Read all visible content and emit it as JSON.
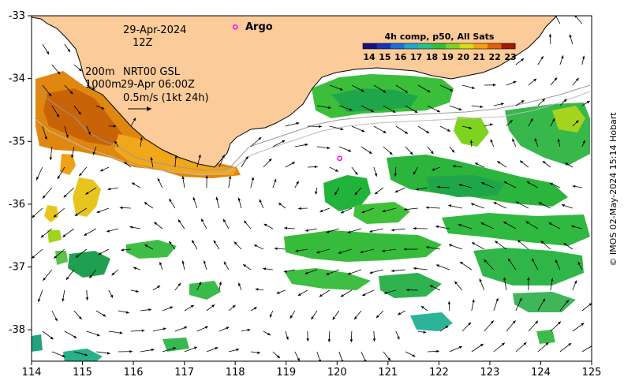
{
  "map": {
    "colors": {
      "land": "#fccb9a",
      "ocean_nodata": "#ffffff",
      "argo": "#ee00ee",
      "frame": "#000000"
    },
    "extent": {
      "lon": [
        114,
        125
      ],
      "lat": [
        -38.5,
        -33
      ]
    },
    "x_ticks": [
      "114",
      "115",
      "116",
      "117",
      "118",
      "119",
      "120",
      "121",
      "122",
      "123",
      "124",
      "125"
    ],
    "y_ticks": [
      "-33",
      "-34",
      "-35",
      "-36",
      "-37",
      "-38"
    ],
    "annotations": {
      "date": "29-Apr-2024",
      "hour": "12Z",
      "contour_200": "200m",
      "contour_1000": "1000m",
      "current_source": "NRT00 GSL",
      "current_time": "29-Apr 06:00Z",
      "scale_arrow": "0.5m/s (1kt 24h)",
      "argo_label": "Argo"
    },
    "argo_floats": [
      {
        "lon": 118.0,
        "lat": -33.18
      },
      {
        "lon": 120.05,
        "lat": -35.27
      }
    ],
    "colorbar": {
      "title": "4h comp, p50, All Sats",
      "labels": [
        "14",
        "15",
        "16",
        "17",
        "18",
        "19",
        "20",
        "21",
        "22",
        "23"
      ],
      "colors": [
        "#16137e",
        "#1633b8",
        "#1a6fd8",
        "#1fa6d0",
        "#27c08a",
        "#2ec23a",
        "#7ed321",
        "#d7d91a",
        "#f2a012",
        "#e0620c",
        "#a11a0e"
      ]
    },
    "credit": "© IMOS 02-May-2024 15:14 Hobart"
  }
}
